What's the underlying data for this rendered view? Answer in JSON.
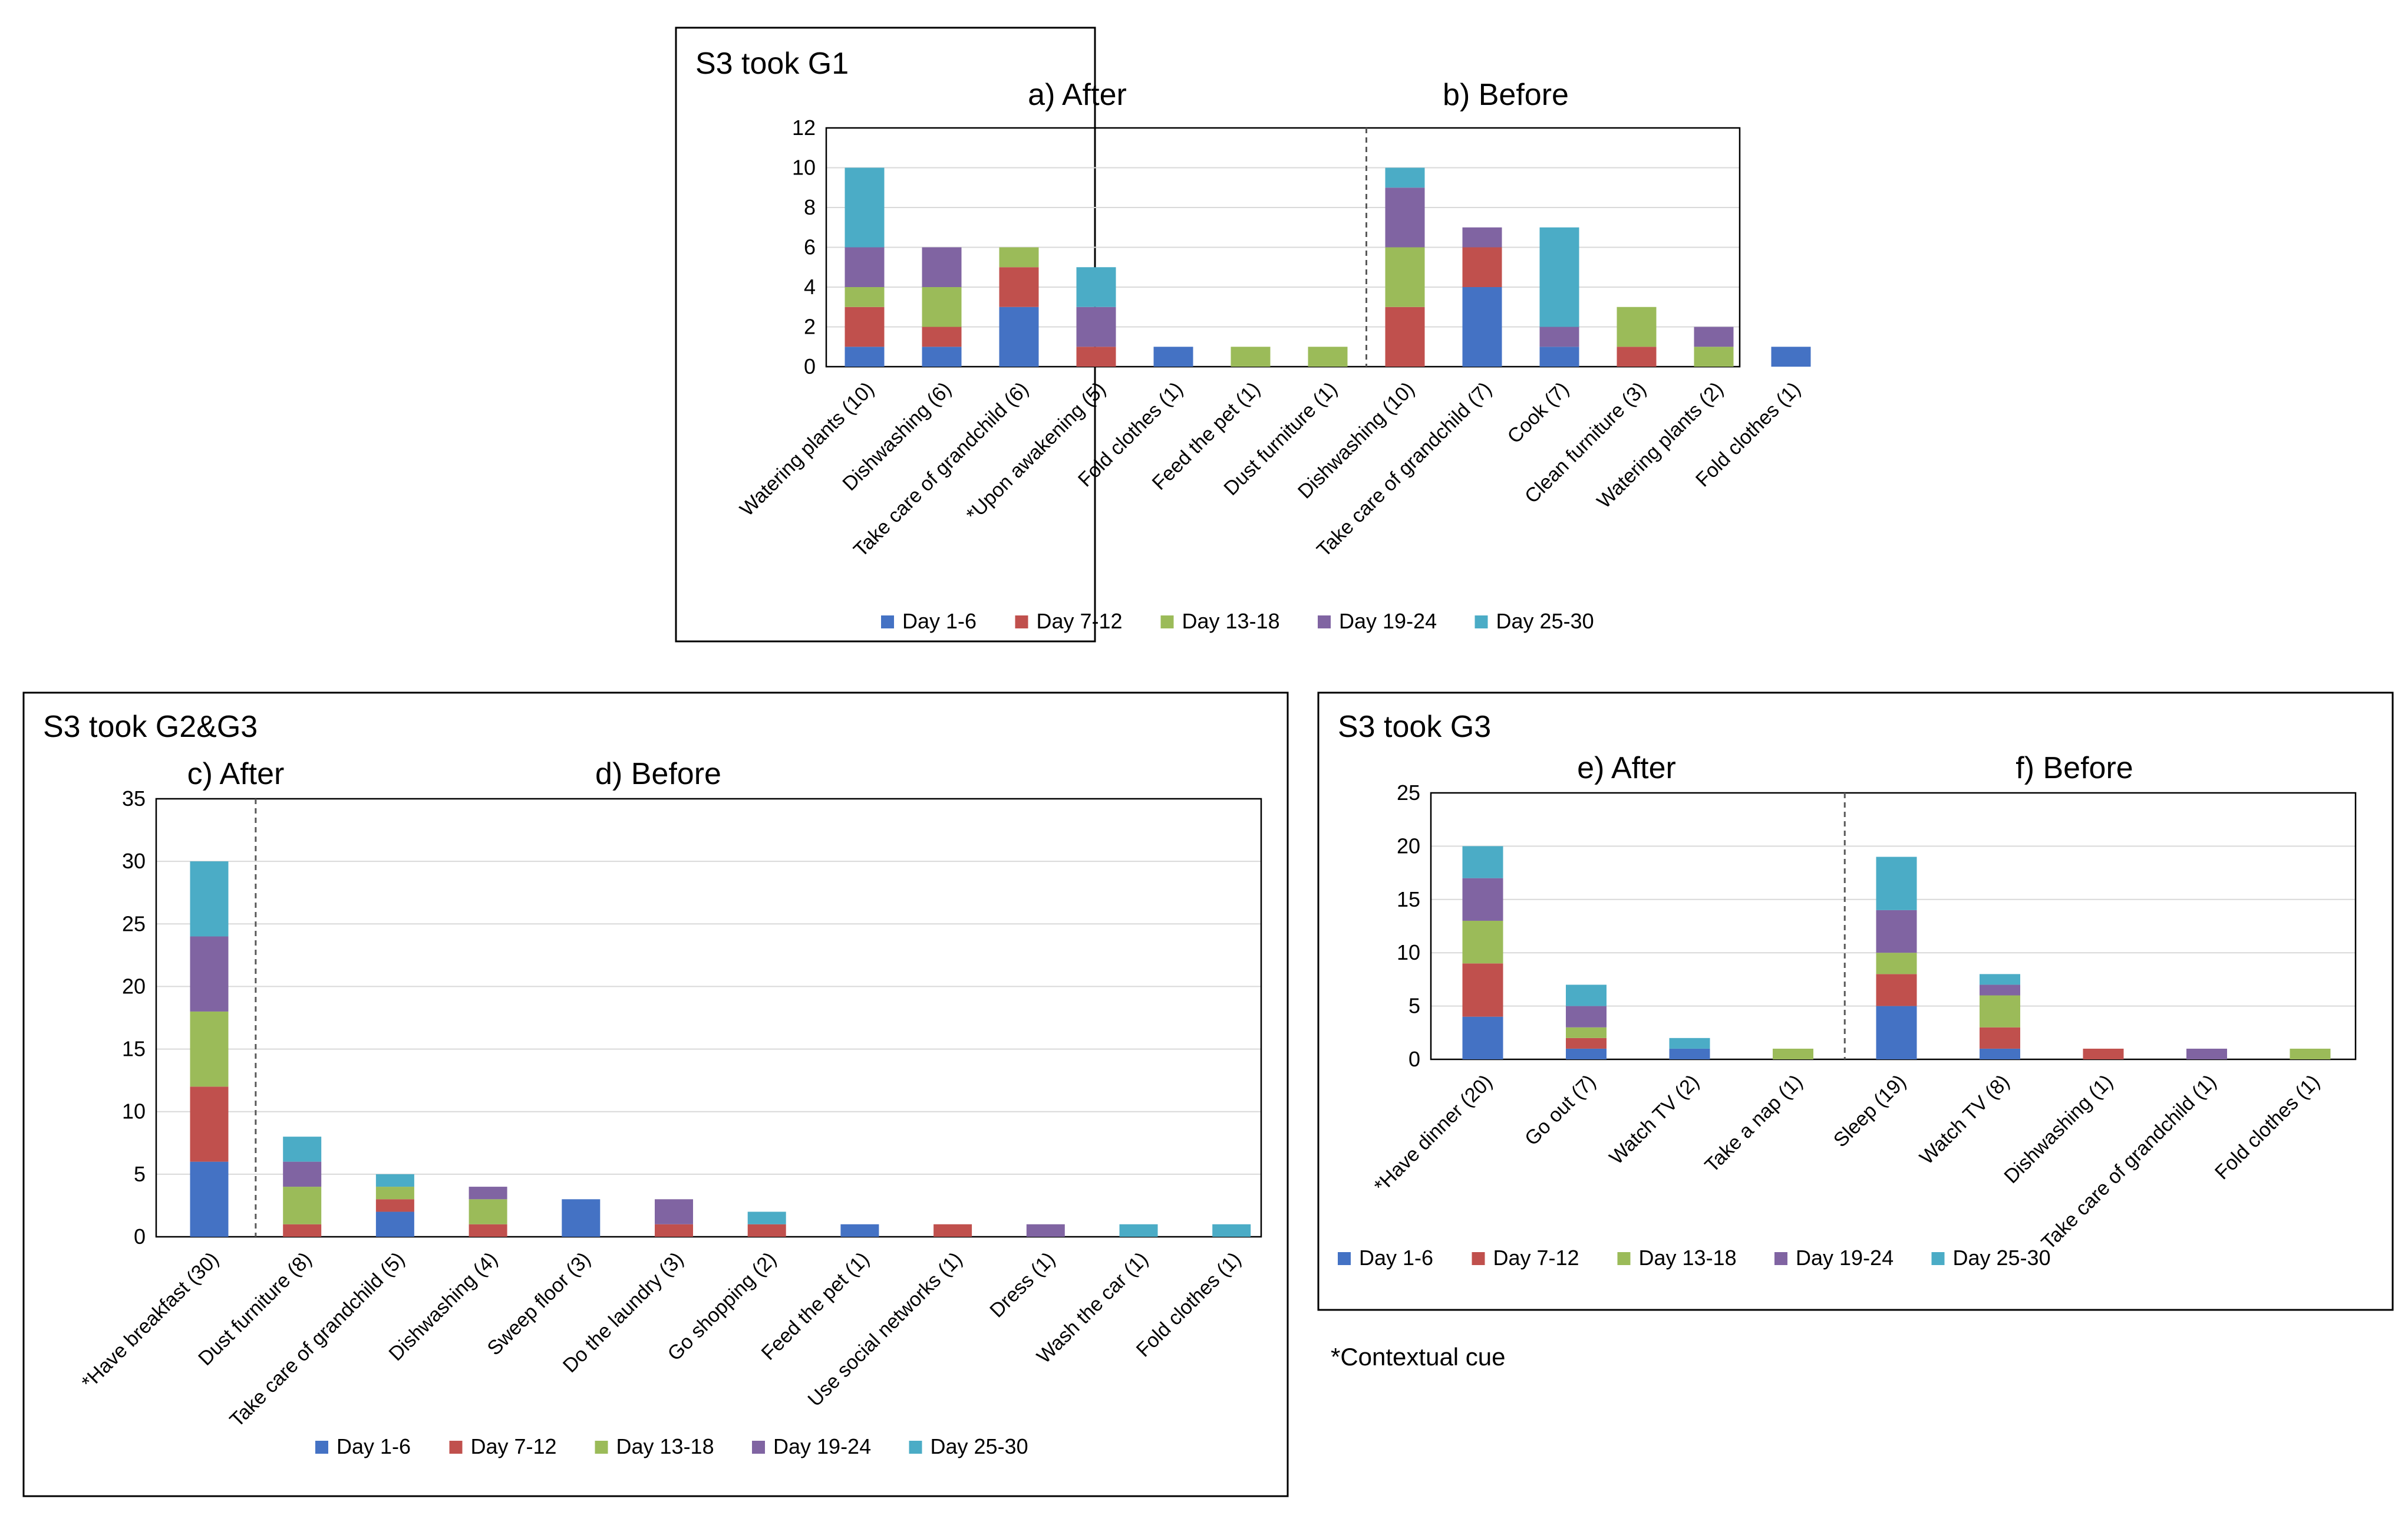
{
  "colors": {
    "series": [
      "#4472C4",
      "#C0504D",
      "#9BBB59",
      "#8064A2",
      "#4BACC6"
    ],
    "axis": "#595959",
    "grid": "#D9D9D9",
    "frame": "#000000"
  },
  "legend_labels": [
    "Day 1-6",
    "Day 7-12",
    "Day 13-18",
    "Day 19-24",
    "Day 25-30"
  ],
  "footnote": "*Contextual cue",
  "chart_data": [
    {
      "type": "bar",
      "stacked": true,
      "title": "S3 took G1",
      "section_labels": [
        "a) After",
        "b) Before"
      ],
      "split_after_index": 6,
      "ylim": [
        0,
        12
      ],
      "yticks": [
        "0",
        "2",
        "4",
        "6",
        "8",
        "10",
        "12"
      ],
      "categories": [
        "Watering plants (10)",
        "Dishwashing (6)",
        "Take care of grandchild (6)",
        "*Upon awakening (5)",
        "Fold clothes (1)",
        "Feed the pet (1)",
        "Dust furniture (1)",
        "Dishwashing (10)",
        "Take care of grandchild (7)",
        "Cook (7)",
        "Clean furniture (3)",
        "Watering plants (2)",
        "Fold clothes (1)"
      ],
      "series": [
        {
          "name": "Day 1-6",
          "values": [
            1,
            1,
            3,
            0,
            1,
            0,
            0,
            0,
            4,
            1,
            0,
            0,
            1
          ]
        },
        {
          "name": "Day 7-12",
          "values": [
            2,
            1,
            2,
            1,
            0,
            0,
            0,
            3,
            2,
            0,
            1,
            0,
            0
          ]
        },
        {
          "name": "Day 13-18",
          "values": [
            1,
            2,
            1,
            0,
            0,
            1,
            1,
            3,
            0,
            0,
            2,
            1,
            0
          ]
        },
        {
          "name": "Day 19-24",
          "values": [
            2,
            2,
            0,
            2,
            0,
            0,
            0,
            3,
            1,
            1,
            0,
            1,
            0
          ]
        },
        {
          "name": "Day 25-30",
          "values": [
            4,
            0,
            0,
            2,
            0,
            0,
            0,
            1,
            0,
            5,
            0,
            0,
            0
          ]
        }
      ]
    },
    {
      "type": "bar",
      "stacked": true,
      "title": "S3 took G2&G3",
      "section_labels": [
        "c) After",
        "d) Before"
      ],
      "split_after_index": 0,
      "ylim": [
        0,
        35
      ],
      "yticks": [
        "0",
        "5",
        "10",
        "15",
        "20",
        "25",
        "30",
        "35"
      ],
      "categories": [
        "*Have breakfast (30)",
        "Dust furniture (8)",
        "Take care of grandchild (5)",
        "Dishwashing (4)",
        "Sweep floor (3)",
        "Do the laundry (3)",
        "Go shopping (2)",
        "Feed the pet (1)",
        "Use social networks (1)",
        "Dress (1)",
        "Wash the car (1)",
        "Fold clothes (1)"
      ],
      "series": [
        {
          "name": "Day 1-6",
          "values": [
            6,
            0,
            2,
            0,
            3,
            0,
            0,
            1,
            0,
            0,
            0,
            0
          ]
        },
        {
          "name": "Day 7-12",
          "values": [
            6,
            1,
            1,
            1,
            0,
            1,
            1,
            0,
            1,
            0,
            0,
            0
          ]
        },
        {
          "name": "Day 13-18",
          "values": [
            6,
            3,
            1,
            2,
            0,
            0,
            0,
            0,
            0,
            0,
            0,
            0
          ]
        },
        {
          "name": "Day 19-24",
          "values": [
            6,
            2,
            0,
            1,
            0,
            2,
            0,
            0,
            0,
            1,
            0,
            0
          ]
        },
        {
          "name": "Day 25-30",
          "values": [
            6,
            2,
            1,
            0,
            0,
            0,
            1,
            0,
            0,
            0,
            1,
            1
          ]
        }
      ]
    },
    {
      "type": "bar",
      "stacked": true,
      "title": "S3 took G3",
      "section_labels": [
        "e) After",
        "f) Before"
      ],
      "split_after_index": 3,
      "ylim": [
        0,
        25
      ],
      "yticks": [
        "0",
        "5",
        "10",
        "15",
        "20",
        "25"
      ],
      "categories": [
        "*Have dinner (20)",
        "Go out (7)",
        "Watch TV (2)",
        "Take a nap (1)",
        "Sleep (19)",
        "Watch TV (8)",
        "Dishwashing (1)",
        "Take care of grandchild (1)",
        "Fold clothes (1)"
      ],
      "series": [
        {
          "name": "Day 1-6",
          "values": [
            4,
            1,
            1,
            0,
            5,
            1,
            0,
            0,
            0
          ]
        },
        {
          "name": "Day 7-12",
          "values": [
            5,
            1,
            0,
            0,
            3,
            2,
            1,
            0,
            0
          ]
        },
        {
          "name": "Day 13-18",
          "values": [
            4,
            1,
            0,
            1,
            2,
            3,
            0,
            0,
            1
          ]
        },
        {
          "name": "Day 19-24",
          "values": [
            4,
            2,
            0,
            0,
            4,
            1,
            0,
            1,
            0
          ]
        },
        {
          "name": "Day 25-30",
          "values": [
            3,
            2,
            1,
            0,
            5,
            1,
            0,
            0,
            0
          ]
        }
      ]
    }
  ]
}
